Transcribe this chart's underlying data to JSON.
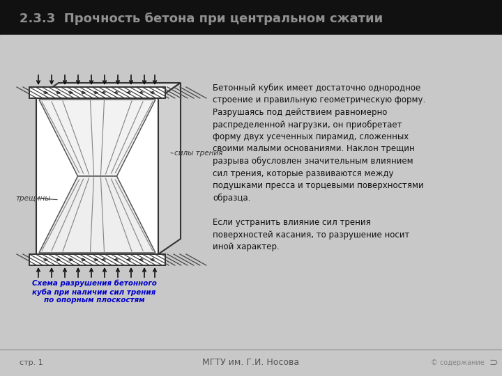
{
  "title": "2.3.3  Прочность бетона при центральном сжатии",
  "title_color": "#909090",
  "bg_top_color": "#111111",
  "bg_main_color": "#c8c8c8",
  "caption_color": "#0000cc",
  "caption_text": "Схема разрушения бетонного\nкуба при наличии сил трения\nпо опорным плоскостям",
  "label_sily_treniya": "силы трения",
  "label_treshiny": "трещины",
  "para1": "Бетонный кубик имеет достаточно однородное строение и правильную геометрическую форму. Разрушаясь под действием равномерно распределенной нагрузки, он приобретает форму двух усеченных пирамид, сложенных своими малыми основаниями. Наклон трещин разрыва обусловлен значительным влиянием сил трения, которые развиваются между подушками пресса и торцевыми поверхностями образца.",
  "para2": "Если устранить влияние сил трения поверхностей касания, то разрушение носит иной характер.",
  "footer_left": "стр. 1",
  "footer_center": "МГТУ им. Г.И. Носова",
  "footer_right": "© содержание"
}
